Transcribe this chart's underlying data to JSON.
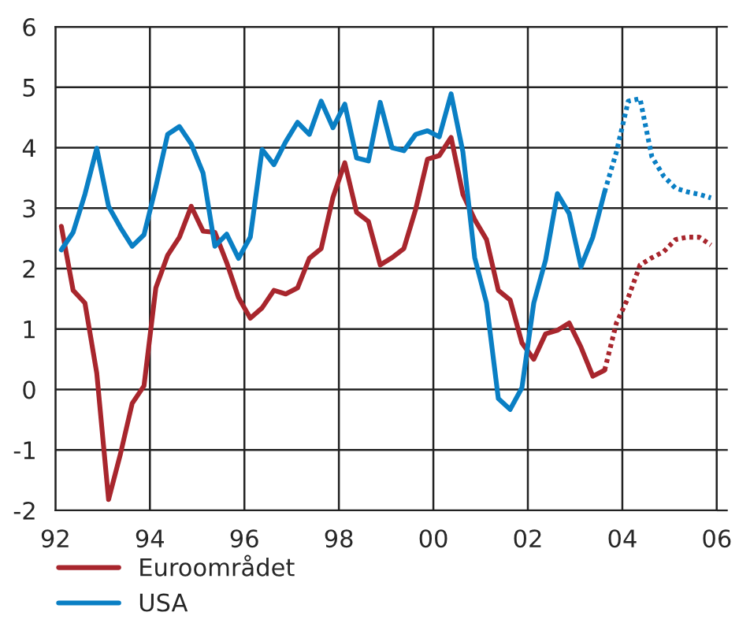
{
  "chart_data": {
    "type": "line",
    "series": [
      {
        "name": "Euroområdet",
        "color": "#a8262d",
        "line_style": "solid",
        "x": [
          1992.125,
          1992.375,
          1992.625,
          1992.875,
          1993.125,
          1993.375,
          1993.625,
          1993.875,
          1994.125,
          1994.375,
          1994.625,
          1994.875,
          1995.125,
          1995.375,
          1995.625,
          1995.875,
          1996.125,
          1996.375,
          1996.625,
          1996.875,
          1997.125,
          1997.375,
          1997.625,
          1997.875,
          1998.125,
          1998.375,
          1998.625,
          1998.875,
          1999.125,
          1999.375,
          1999.625,
          1999.875,
          2000.125,
          2000.375,
          2000.625,
          2000.875,
          2001.125,
          2001.375,
          2001.625,
          2001.875,
          2002.125,
          2002.375,
          2002.625,
          2002.875,
          2003.125,
          2003.375,
          2003.625
        ],
        "values": [
          2.7,
          1.64,
          1.43,
          0.27,
          -1.82,
          -1.07,
          -0.23,
          0.06,
          1.68,
          2.22,
          2.52,
          3.03,
          2.62,
          2.6,
          2.1,
          1.52,
          1.18,
          1.35,
          1.64,
          1.58,
          1.68,
          2.17,
          2.33,
          3.18,
          3.75,
          2.93,
          2.78,
          2.06,
          2.18,
          2.33,
          2.98,
          3.81,
          3.87,
          4.17,
          3.23,
          2.81,
          2.48,
          1.64,
          1.48,
          0.77,
          0.5,
          0.92,
          0.98,
          1.1,
          0.7,
          0.22,
          0.32
        ]
      },
      {
        "color": "#a8262d",
        "line_style": "dotted",
        "x": [
          2003.625,
          2003.875,
          2004.125,
          2004.375,
          2004.625,
          2004.875,
          2005.125,
          2005.375,
          2005.625,
          2005.875
        ],
        "values": [
          0.32,
          1.1,
          1.52,
          2.06,
          2.18,
          2.28,
          2.48,
          2.52,
          2.52,
          2.39
        ]
      },
      {
        "name": "USA",
        "color": "#0a7fc4",
        "line_style": "solid",
        "x": [
          1992.125,
          1992.375,
          1992.625,
          1992.875,
          1993.125,
          1993.375,
          1993.625,
          1993.875,
          1994.125,
          1994.375,
          1994.625,
          1994.875,
          1995.125,
          1995.375,
          1995.625,
          1995.875,
          1996.125,
          1996.375,
          1996.625,
          1996.875,
          1997.125,
          1997.375,
          1997.625,
          1997.875,
          1998.125,
          1998.375,
          1998.625,
          1998.875,
          1999.125,
          1999.375,
          1999.625,
          1999.875,
          2000.125,
          2000.375,
          2000.625,
          2000.875,
          2001.125,
          2001.375,
          2001.625,
          2001.875,
          2002.125,
          2002.375,
          2002.625,
          2002.875,
          2003.125,
          2003.375,
          2003.625
        ],
        "values": [
          2.31,
          2.6,
          3.23,
          3.99,
          3.03,
          2.68,
          2.37,
          2.56,
          3.35,
          4.22,
          4.35,
          4.06,
          3.58,
          2.37,
          2.57,
          2.17,
          2.52,
          3.97,
          3.72,
          4.1,
          4.42,
          4.22,
          4.77,
          4.33,
          4.72,
          3.83,
          3.78,
          4.75,
          4.0,
          3.95,
          4.22,
          4.28,
          4.18,
          4.89,
          3.93,
          2.18,
          1.43,
          -0.15,
          -0.33,
          0.03,
          1.43,
          2.14,
          3.24,
          2.91,
          2.03,
          2.52,
          3.27
        ]
      },
      {
        "color": "#0a7fc4",
        "line_style": "dotted",
        "x": [
          2003.625,
          2003.875,
          2004.125,
          2004.375,
          2004.625,
          2004.875,
          2005.125,
          2005.375,
          2005.625,
          2005.875
        ],
        "values": [
          3.27,
          3.93,
          4.77,
          4.81,
          3.85,
          3.53,
          3.33,
          3.27,
          3.23,
          3.17
        ]
      }
    ],
    "xlim": [
      1992,
      2006
    ],
    "xticks": [
      {
        "value": 1992,
        "label": "92"
      },
      {
        "value": 1994,
        "label": "94"
      },
      {
        "value": 1996,
        "label": "96"
      },
      {
        "value": 1998,
        "label": "98"
      },
      {
        "value": 2000,
        "label": "00"
      },
      {
        "value": 2002,
        "label": "02"
      },
      {
        "value": 2004,
        "label": "04"
      },
      {
        "value": 2006,
        "label": "06"
      }
    ],
    "ylim": [
      -2,
      6
    ],
    "yticks": [
      -2,
      -1,
      0,
      1,
      2,
      3,
      4,
      5,
      6
    ],
    "grid": true,
    "legend": "bottom",
    "marker": "none"
  }
}
